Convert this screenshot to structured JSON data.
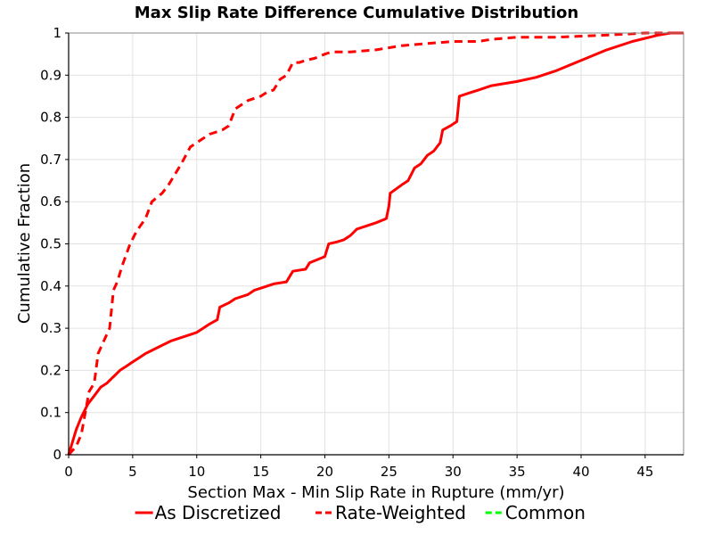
{
  "chart_data": {
    "type": "line",
    "title": "Max Slip Rate Difference Cumulative Distribution",
    "xlabel": "Section Max - Min Slip Rate in Rupture (mm/yr)",
    "ylabel": "Cumulative Fraction",
    "xlim": [
      0,
      48
    ],
    "ylim": [
      0,
      1
    ],
    "xticks": [
      0,
      5,
      10,
      15,
      20,
      25,
      30,
      35,
      40,
      45
    ],
    "yticks": [
      0,
      0.1,
      0.2,
      0.3,
      0.4,
      0.5,
      0.6,
      0.7,
      0.8,
      0.9,
      1
    ],
    "ytick_labels": [
      "0",
      "0.1",
      "0.2",
      "0.3",
      "0.4",
      "0.5",
      "0.6",
      "0.7",
      "0.8",
      "0.9",
      "1"
    ],
    "grid": true,
    "legend_position": "bottom",
    "series": [
      {
        "name": "As Discretized",
        "color": "#ff0000",
        "dash": "solid",
        "x": [
          0,
          0.3,
          0.6,
          1,
          1.5,
          2,
          2.5,
          3,
          3.5,
          4,
          4.5,
          5,
          5.5,
          6,
          7,
          8,
          9,
          10,
          10.5,
          11,
          11.6,
          11.8,
          12.5,
          13,
          14,
          14.5,
          15,
          16,
          17,
          17.5,
          18.5,
          18.8,
          20,
          20.3,
          21,
          21.5,
          22,
          22.5,
          23,
          24,
          24.8,
          25,
          25.1,
          26,
          26.5,
          27,
          27.5,
          28,
          28.5,
          29,
          29.2,
          29.8,
          30.3,
          30.5,
          31,
          31.5,
          32,
          33,
          35,
          36.5,
          38,
          40,
          42,
          44,
          46,
          47,
          48
        ],
        "y": [
          0,
          0.03,
          0.06,
          0.09,
          0.12,
          0.14,
          0.16,
          0.17,
          0.185,
          0.2,
          0.21,
          0.22,
          0.23,
          0.24,
          0.255,
          0.27,
          0.28,
          0.29,
          0.3,
          0.31,
          0.32,
          0.35,
          0.36,
          0.37,
          0.38,
          0.39,
          0.395,
          0.405,
          0.41,
          0.435,
          0.44,
          0.455,
          0.47,
          0.5,
          0.505,
          0.51,
          0.52,
          0.535,
          0.54,
          0.55,
          0.56,
          0.59,
          0.62,
          0.64,
          0.65,
          0.68,
          0.69,
          0.71,
          0.72,
          0.74,
          0.77,
          0.78,
          0.79,
          0.85,
          0.855,
          0.86,
          0.865,
          0.875,
          0.885,
          0.895,
          0.91,
          0.935,
          0.96,
          0.98,
          0.995,
          1,
          1
        ]
      },
      {
        "name": "Rate-Weighted",
        "color": "#ff0000",
        "dash": "dashed",
        "x": [
          0,
          0.3,
          0.6,
          1,
          1.3,
          1.6,
          2,
          2.3,
          2.6,
          3.2,
          3.5,
          3.8,
          4.2,
          4.8,
          5.3,
          6,
          6.5,
          7.3,
          7.8,
          8.2,
          8.8,
          9.5,
          10,
          10.5,
          11,
          11.5,
          12,
          12.5,
          13,
          13.5,
          14,
          14.5,
          15,
          15.5,
          16,
          16.5,
          17,
          17.5,
          18,
          18.5,
          19.2,
          20,
          20.5,
          22,
          24,
          26,
          28,
          30,
          32,
          33,
          35,
          38,
          42,
          45,
          46.5,
          48
        ],
        "y": [
          0,
          0.01,
          0.02,
          0.05,
          0.1,
          0.15,
          0.17,
          0.24,
          0.26,
          0.3,
          0.39,
          0.41,
          0.45,
          0.5,
          0.53,
          0.56,
          0.6,
          0.62,
          0.64,
          0.66,
          0.69,
          0.73,
          0.74,
          0.75,
          0.76,
          0.765,
          0.77,
          0.78,
          0.82,
          0.83,
          0.84,
          0.845,
          0.85,
          0.86,
          0.865,
          0.89,
          0.9,
          0.93,
          0.93,
          0.935,
          0.94,
          0.95,
          0.955,
          0.955,
          0.96,
          0.97,
          0.975,
          0.98,
          0.98,
          0.985,
          0.99,
          0.99,
          0.995,
          1,
          1,
          1
        ]
      },
      {
        "name": "Common",
        "color": "#00ff00",
        "dash": "dashed",
        "x": [],
        "y": []
      }
    ]
  }
}
